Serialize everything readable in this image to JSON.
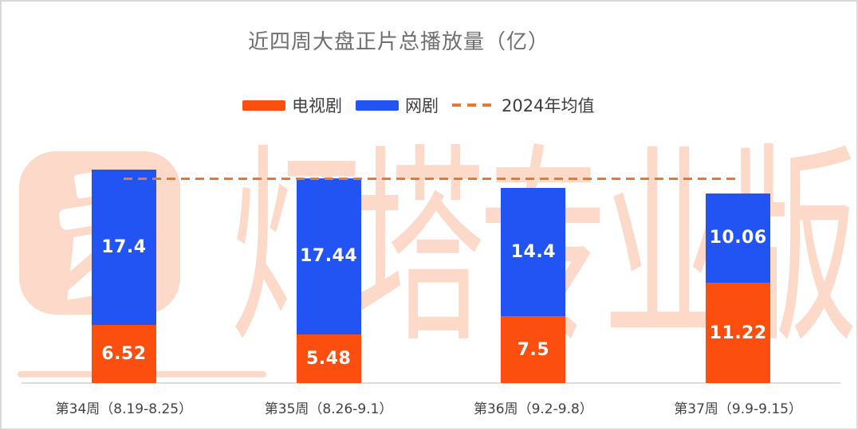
{
  "title": "近四周大盘正片总播放量（亿）",
  "legend": {
    "items": [
      {
        "label": "电视剧",
        "swatch": "rect",
        "color": "#fb4e0f"
      },
      {
        "label": "网剧",
        "swatch": "rect",
        "color": "#2254f4"
      },
      {
        "label": "2024年均值",
        "swatch": "dash",
        "color": "#e9792f"
      }
    ]
  },
  "watermark": {
    "text": "灯塔专业版",
    "logo": "beacon-lighthouse",
    "color": "#fcd9c8"
  },
  "chart_data": {
    "type": "bar",
    "stacked": true,
    "title": "近四周大盘正片总播放量（亿）",
    "unit": "亿",
    "categories": [
      "第34周（8.19-8.25）",
      "第35周（8.26-9.1）",
      "第36周（9.2-9.8）",
      "第37周（9.9-9.15）"
    ],
    "series": [
      {
        "name": "电视剧",
        "color": "#fb4e0f",
        "values": [
          6.52,
          5.48,
          7.5,
          11.22
        ]
      },
      {
        "name": "网剧",
        "color": "#2254f4",
        "values": [
          17.4,
          17.44,
          14.4,
          10.06
        ]
      }
    ],
    "reference_line": {
      "name": "2024年均值",
      "value": 23,
      "style": "dashed",
      "color": "#e9792f"
    },
    "ylim": [
      0,
      24
    ],
    "legend_position": "top",
    "value_labels": true,
    "gridlines": false
  }
}
